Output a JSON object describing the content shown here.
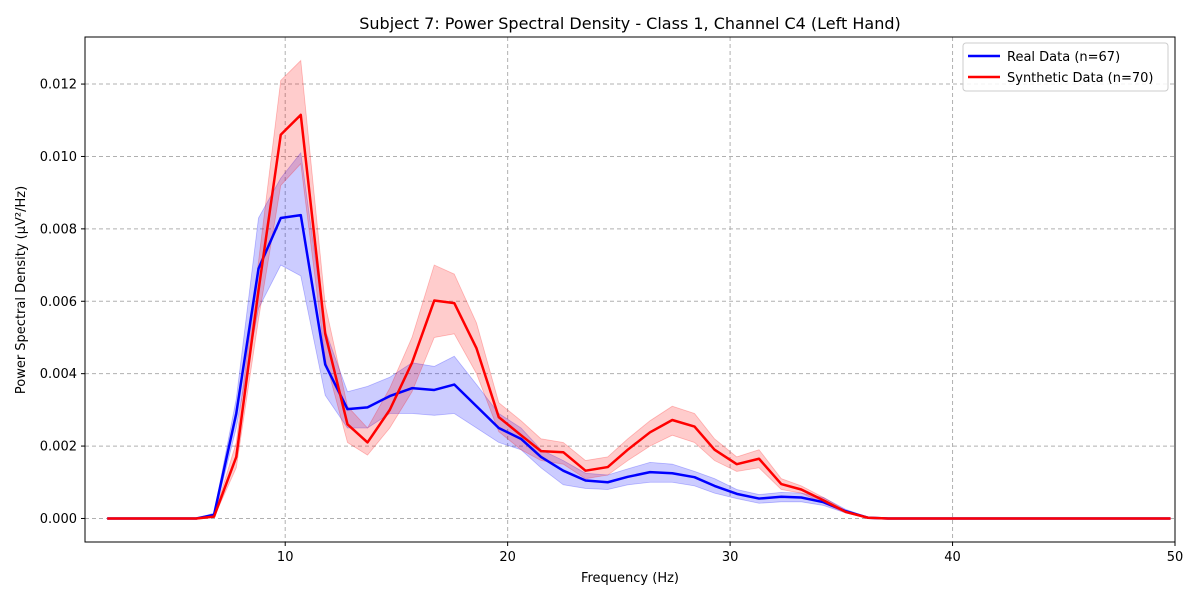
{
  "chart_data": {
    "type": "line",
    "title": "Subject 7: Power Spectral Density - Class 1, Channel C4 (Left Hand)",
    "xlabel": "Frequency (Hz)",
    "ylabel": "Power Spectral Density (µV²/Hz)",
    "xlim": [
      1,
      50
    ],
    "ylim": [
      -0.00065,
      0.0133
    ],
    "xticks": [
      10,
      20,
      30,
      40,
      50
    ],
    "yticks": [
      0.0,
      0.002,
      0.004,
      0.006,
      0.008,
      0.01,
      0.012
    ],
    "ytick_labels": [
      "0.000",
      "0.002",
      "0.004",
      "0.006",
      "0.008",
      "0.010",
      "0.012"
    ],
    "grid": true,
    "legend_position": "top-right",
    "series": [
      {
        "name": "Real Data (n=67)",
        "color": "#0000ff",
        "band_color": "#0000ff",
        "x": [
          2,
          3,
          4,
          5,
          6,
          6.8,
          7.8,
          8.8,
          9.8,
          10.7,
          11.8,
          12.8,
          13.7,
          14.7,
          15.7,
          16.7,
          17.6,
          18.6,
          19.6,
          20.6,
          21.5,
          22.5,
          23.5,
          24.5,
          25.4,
          26.4,
          27.4,
          28.4,
          29.3,
          30.3,
          31.3,
          32.3,
          33.2,
          34.2,
          35.2,
          36.2,
          37.1,
          38.1,
          39.1,
          40.1,
          41.0,
          42.0,
          43.0,
          44.0,
          45.0,
          45.9,
          46.9,
          47.9,
          48.9,
          49.8
        ],
        "values": [
          0,
          0,
          0,
          0,
          0,
          0.0001,
          0.0029,
          0.0069,
          0.0083,
          0.00838,
          0.00425,
          0.00302,
          0.00307,
          0.00338,
          0.0036,
          0.00355,
          0.0037,
          0.0031,
          0.0025,
          0.0022,
          0.0017,
          0.00132,
          0.00105,
          0.001,
          0.00115,
          0.00128,
          0.00125,
          0.00114,
          0.0009,
          0.00068,
          0.00055,
          0.0006,
          0.00058,
          0.00045,
          0.0002,
          2e-05,
          0,
          0,
          0,
          0,
          0,
          0,
          0,
          0,
          0,
          0,
          0,
          0,
          0,
          0
        ],
        "lower": [
          0,
          0,
          0,
          0,
          0,
          5e-05,
          0.0025,
          0.0058,
          0.007,
          0.0067,
          0.0034,
          0.0025,
          0.0025,
          0.0029,
          0.0029,
          0.00285,
          0.0029,
          0.0025,
          0.0021,
          0.0019,
          0.0014,
          0.00093,
          0.00083,
          0.0008,
          0.00093,
          0.001,
          0.001,
          0.0009,
          0.0007,
          0.00055,
          0.00042,
          0.00046,
          0.00046,
          0.00036,
          0.00015,
          1e-05,
          0,
          0,
          0,
          0,
          0,
          0,
          0,
          0,
          0,
          0,
          0,
          0,
          0,
          0
        ],
        "upper": [
          0,
          0,
          0,
          0,
          0,
          0.00015,
          0.0033,
          0.0083,
          0.0094,
          0.0101,
          0.0052,
          0.0035,
          0.00365,
          0.0039,
          0.0043,
          0.0042,
          0.00448,
          0.0037,
          0.0029,
          0.0025,
          0.0019,
          0.0016,
          0.00125,
          0.0012,
          0.00137,
          0.00155,
          0.0015,
          0.0013,
          0.0011,
          0.0008,
          0.00066,
          0.00072,
          0.0007,
          0.00058,
          0.00025,
          3e-05,
          0,
          0,
          0,
          0,
          0,
          0,
          0,
          0,
          0,
          0,
          0,
          0,
          0,
          0
        ]
      },
      {
        "name": "Synthetic Data (n=70)",
        "color": "#ff0000",
        "band_color": "#ff0000",
        "x": [
          2,
          3,
          4,
          5,
          6,
          6.8,
          7.8,
          8.8,
          9.8,
          10.7,
          11.8,
          12.8,
          13.7,
          14.7,
          15.7,
          16.7,
          17.6,
          18.6,
          19.6,
          20.6,
          21.5,
          22.5,
          23.5,
          24.5,
          25.4,
          26.4,
          27.4,
          28.4,
          29.3,
          30.3,
          31.3,
          32.3,
          33.2,
          34.2,
          35.2,
          36.2,
          37.1,
          38.1,
          39.1,
          40.1,
          41.0,
          42.0,
          43.0,
          44.0,
          45.0,
          45.9,
          46.9,
          47.9,
          48.9,
          49.8
        ],
        "values": [
          0,
          0,
          0,
          0,
          0,
          5e-05,
          0.0017,
          0.0063,
          0.0106,
          0.01115,
          0.0051,
          0.0026,
          0.0021,
          0.003,
          0.0043,
          0.00602,
          0.00595,
          0.0047,
          0.0028,
          0.0023,
          0.00186,
          0.00183,
          0.00132,
          0.00142,
          0.0019,
          0.00238,
          0.00272,
          0.00254,
          0.0019,
          0.0015,
          0.00165,
          0.00095,
          0.0008,
          0.0005,
          0.00018,
          2e-05,
          0,
          0,
          0,
          0,
          0,
          0,
          0,
          0,
          0,
          0,
          0,
          0,
          0,
          0
        ],
        "lower": [
          0,
          0,
          0,
          0,
          0,
          3e-05,
          0.0014,
          0.0055,
          0.0092,
          0.0098,
          0.0044,
          0.0021,
          0.00175,
          0.0025,
          0.0035,
          0.005,
          0.0051,
          0.004,
          0.0024,
          0.0019,
          0.0016,
          0.0015,
          0.0011,
          0.0012,
          0.0016,
          0.002,
          0.0023,
          0.0021,
          0.0016,
          0.0013,
          0.0014,
          0.0008,
          0.0007,
          0.00042,
          0.00015,
          1e-05,
          0,
          0,
          0,
          0,
          0,
          0,
          0,
          0,
          0,
          0,
          0,
          0,
          0,
          0
        ],
        "upper": [
          0,
          0,
          0,
          0,
          0,
          8e-05,
          0.0021,
          0.0071,
          0.0121,
          0.01265,
          0.0059,
          0.0031,
          0.0025,
          0.0036,
          0.005,
          0.007,
          0.00675,
          0.0054,
          0.0032,
          0.0027,
          0.0022,
          0.0021,
          0.0016,
          0.0017,
          0.0022,
          0.0027,
          0.0031,
          0.0029,
          0.0022,
          0.0017,
          0.0019,
          0.0011,
          0.0009,
          0.00058,
          0.00022,
          3e-05,
          0,
          0,
          0,
          0,
          0,
          0,
          0,
          0,
          0,
          0,
          0,
          0,
          0,
          0
        ]
      }
    ]
  }
}
